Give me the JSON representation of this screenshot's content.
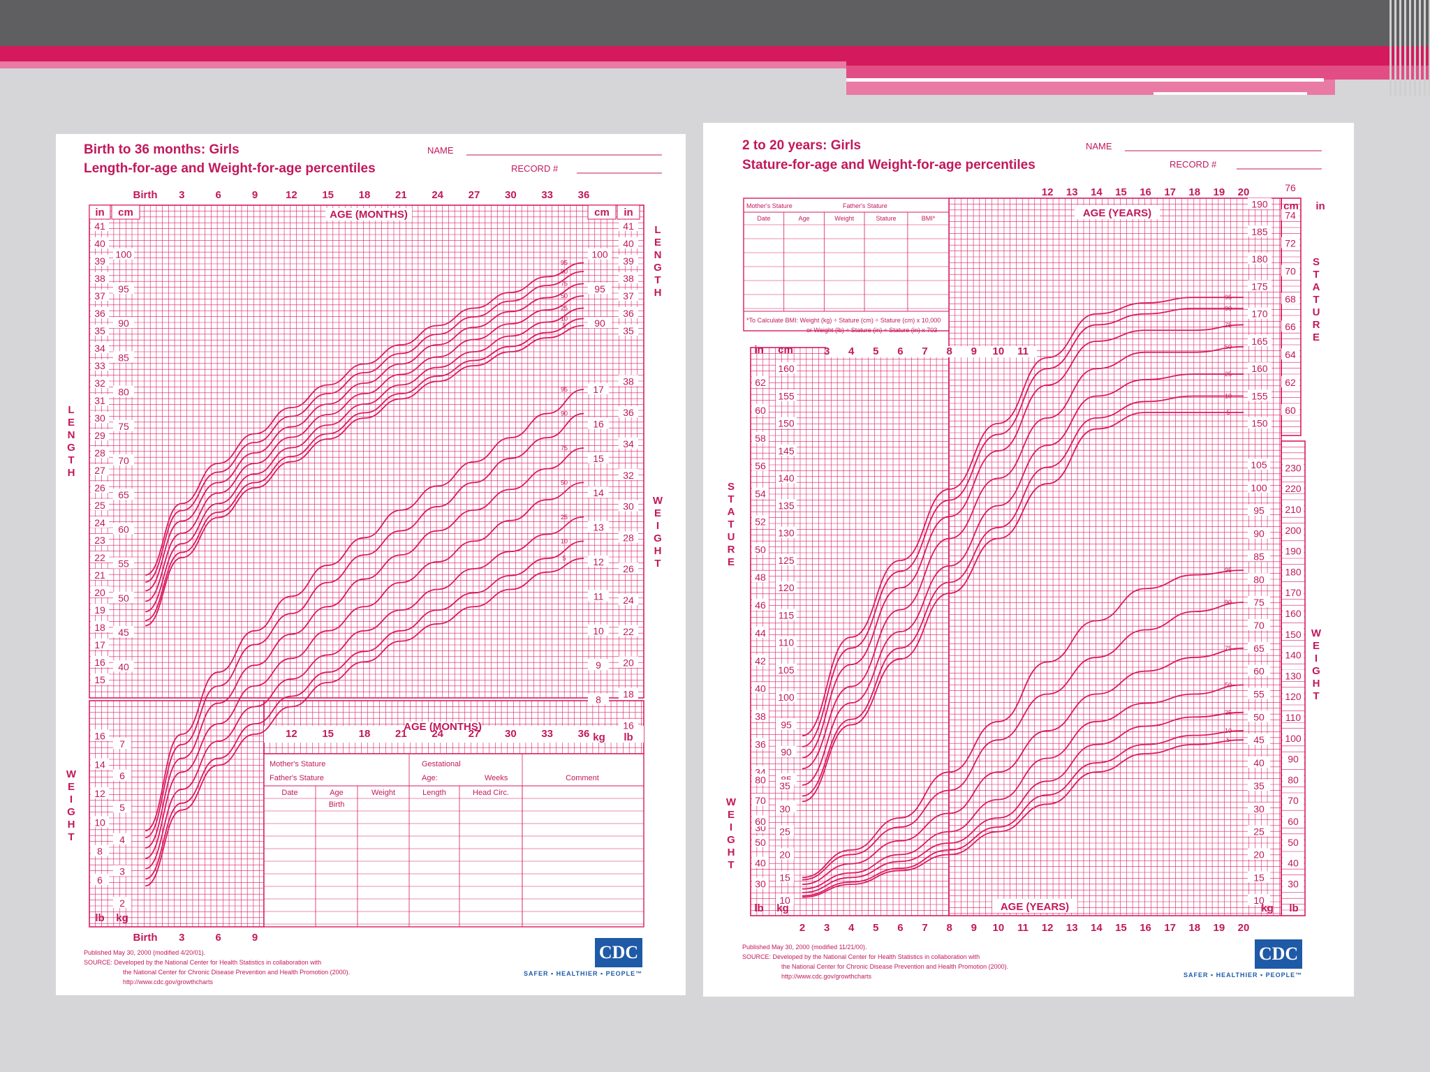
{
  "slide": {
    "accent": "#d41a5c",
    "grid_color": "#d81b60"
  },
  "left_chart": {
    "title": "Birth to 36 months: Girls",
    "subtitle": "Length-for-age and Weight-for-age percentiles",
    "name_label": "NAME",
    "record_label": "RECORD #",
    "age_axis_label": "AGE (MONTHS)",
    "top_ticks": [
      "Birth",
      "3",
      "6",
      "9",
      "12",
      "15",
      "18",
      "21",
      "24",
      "27",
      "30",
      "33",
      "36"
    ],
    "bottom_ticks": [
      "Birth",
      "3",
      "6",
      "9"
    ],
    "inner_ticks": [
      "12",
      "15",
      "18",
      "21",
      "24",
      "27",
      "30",
      "33",
      "36"
    ],
    "length_label": "LENGTH",
    "weight_label": "WEIGHT",
    "unit_in": "in",
    "unit_cm": "cm",
    "unit_kg": "kg",
    "unit_lb": "lb",
    "length_in_ticks": [
      "41",
      "40",
      "39",
      "38",
      "37",
      "36",
      "35",
      "34",
      "33",
      "32",
      "31",
      "30",
      "29",
      "28",
      "27",
      "26",
      "25",
      "24",
      "23",
      "22",
      "21",
      "20",
      "19",
      "18",
      "17",
      "16",
      "15"
    ],
    "length_cm_ticks": [
      "100",
      "95",
      "90",
      "85",
      "80",
      "75",
      "70",
      "65",
      "60",
      "55",
      "50",
      "45",
      "40"
    ],
    "right_length_cm_ticks": [
      "100",
      "95",
      "90"
    ],
    "right_length_in_ticks": [
      "41",
      "40",
      "39",
      "38",
      "37",
      "36",
      "35"
    ],
    "right_weight_kg_ticks": [
      "17",
      "16",
      "15",
      "14",
      "13",
      "12",
      "11",
      "10",
      "9",
      "8"
    ],
    "right_weight_lb_ticks": [
      "38",
      "36",
      "34",
      "32",
      "30",
      "28",
      "26",
      "24",
      "22",
      "20",
      "18",
      "16"
    ],
    "left_weight_lb_ticks": [
      "16",
      "14",
      "12",
      "10",
      "8",
      "6"
    ],
    "left_weight_kg_ticks": [
      "7",
      "6",
      "5",
      "4",
      "3",
      "2"
    ],
    "percentiles": [
      "95",
      "90",
      "75",
      "50",
      "25",
      "10",
      "5"
    ],
    "form": {
      "mothers_stature": "Mother's Stature",
      "fathers_stature": "Father's Stature",
      "gestational": "Gestational",
      "age": "Age:",
      "weeks": "Weeks",
      "comment": "Comment",
      "cols": [
        "Date",
        "Age",
        "Weight",
        "Length",
        "Head Circ."
      ],
      "birth": "Birth"
    },
    "footer": [
      "Published May 30, 2000 (modified 4/20/01).",
      "SOURCE: Developed by the National Center for Health Statistics in collaboration with",
      "the National Center for Chronic Disease Prevention and Health Promotion (2000).",
      "http://www.cdc.gov/growthcharts"
    ],
    "logo": "CDC",
    "tagline": "SAFER • HEALTHIER • PEOPLE™"
  },
  "right_chart": {
    "title": "2 to 20 years: Girls",
    "subtitle": "Stature-for-age and Weight-for-age percentiles",
    "name_label": "NAME",
    "record_label": "RECORD #",
    "age_axis_label": "AGE (YEARS)",
    "top_ticks": [
      "12",
      "13",
      "14",
      "15",
      "16",
      "17",
      "18",
      "19",
      "20"
    ],
    "bottom_ticks": [
      "2",
      "3",
      "4",
      "5",
      "6",
      "7",
      "8",
      "9",
      "10",
      "11",
      "12",
      "13",
      "14",
      "15",
      "16",
      "17",
      "18",
      "19",
      "20"
    ],
    "inner_ticks": [
      "3",
      "4",
      "5",
      "6",
      "7",
      "8",
      "9",
      "10",
      "11"
    ],
    "stature_label": "STATURE",
    "weight_label": "WEIGHT",
    "unit_in": "in",
    "unit_cm": "cm",
    "unit_kg": "kg",
    "unit_lb": "lb",
    "table": {
      "mothers_stature": "Mother's Stature",
      "fathers_stature": "Father's Stature",
      "cols": [
        "Date",
        "Age",
        "Weight",
        "Stature",
        "BMI*"
      ],
      "bmi_note1": "*To Calculate BMI: Weight (kg) ÷ Stature (cm) ÷ Stature (cm) x 10,000",
      "bmi_note2": "or Weight (lb) ÷ Stature (in) ÷ Stature (in) x 703"
    },
    "left_in_ticks": [
      "62",
      "60",
      "58",
      "56",
      "54",
      "52",
      "50",
      "48",
      "46",
      "44",
      "42",
      "40",
      "38",
      "36",
      "34",
      "32",
      "30"
    ],
    "left_cm_ticks": [
      "160",
      "155",
      "150",
      "145",
      "140",
      "135",
      "130",
      "125",
      "120",
      "115",
      "110",
      "105",
      "100",
      "95",
      "90",
      "85",
      "80"
    ],
    "right_cm_top": [
      "190",
      "185",
      "180",
      "175",
      "170",
      "165",
      "160",
      "155",
      "150"
    ],
    "right_in_top": [
      "76",
      "74",
      "72",
      "70",
      "68",
      "66",
      "64",
      "62",
      "60"
    ],
    "right_kg_ticks": [
      "105",
      "100",
      "95",
      "90",
      "85",
      "80",
      "75",
      "70",
      "65",
      "60",
      "55",
      "50",
      "45",
      "40",
      "35",
      "30",
      "25",
      "20",
      "15",
      "10"
    ],
    "right_lb_ticks": [
      "230",
      "220",
      "210",
      "200",
      "190",
      "180",
      "170",
      "160",
      "150",
      "140",
      "130",
      "120",
      "110",
      "100",
      "90",
      "80",
      "70",
      "60",
      "50",
      "40",
      "30"
    ],
    "left_weight_lb_ticks": [
      "80",
      "70",
      "60",
      "50",
      "40",
      "30"
    ],
    "left_weight_kg_ticks": [
      "35",
      "30",
      "25",
      "20",
      "15",
      "10"
    ],
    "percentiles": [
      "95",
      "90",
      "75",
      "50",
      "25",
      "10",
      "5"
    ],
    "footer": [
      "Published May 30, 2000 (modified 11/21/00).",
      "SOURCE: Developed by the National Center for Health Statistics in collaboration with",
      "the National Center for Chronic Disease Prevention and Health Promotion (2000).",
      "http://www.cdc.gov/growthcharts"
    ],
    "logo": "CDC",
    "tagline": "SAFER • HEALTHIER • PEOPLE™"
  },
  "chart_data": [
    {
      "type": "line",
      "title": "Birth to 36 months: Girls — Length-for-age",
      "xlabel": "AGE (MONTHS)",
      "ylabel": "LENGTH",
      "x": [
        0,
        3,
        6,
        9,
        12,
        15,
        18,
        21,
        24,
        27,
        30,
        33,
        36
      ],
      "xlim": [
        0,
        36
      ],
      "ylim": [
        15,
        41.5
      ],
      "series": [
        {
          "name": "95",
          "values": [
            21.0,
            25.1,
            27.4,
            29.1,
            30.6,
            31.9,
            33.1,
            34.2,
            35.3,
            36.3,
            37.2,
            38.1,
            38.9
          ]
        },
        {
          "name": "90",
          "values": [
            20.6,
            24.7,
            26.9,
            28.6,
            30.1,
            31.4,
            32.6,
            33.7,
            34.8,
            35.8,
            36.7,
            37.6,
            38.4
          ]
        },
        {
          "name": "75",
          "values": [
            20.1,
            24.1,
            26.3,
            28.0,
            29.5,
            30.8,
            32.0,
            33.1,
            34.2,
            35.2,
            36.1,
            36.9,
            37.7
          ]
        },
        {
          "name": "50",
          "values": [
            19.5,
            23.4,
            25.7,
            27.4,
            28.9,
            30.2,
            31.4,
            32.5,
            33.5,
            34.5,
            35.4,
            36.2,
            37.0
          ]
        },
        {
          "name": "25",
          "values": [
            18.9,
            22.8,
            25.1,
            26.8,
            28.3,
            29.6,
            30.8,
            31.9,
            32.9,
            33.8,
            34.7,
            35.5,
            36.3
          ]
        },
        {
          "name": "10",
          "values": [
            18.4,
            22.3,
            24.6,
            26.3,
            27.8,
            29.1,
            30.3,
            31.4,
            32.4,
            33.3,
            34.1,
            34.9,
            35.7
          ]
        },
        {
          "name": "5",
          "values": [
            18.1,
            22.0,
            24.3,
            26.0,
            27.5,
            28.8,
            30.0,
            31.1,
            32.1,
            33.0,
            33.8,
            34.6,
            35.3
          ]
        }
      ]
    },
    {
      "type": "line",
      "title": "Birth to 36 months: Girls — Weight-for-age",
      "xlabel": "AGE (MONTHS)",
      "ylabel": "WEIGHT (kg)",
      "x": [
        0,
        3,
        6,
        9,
        12,
        15,
        18,
        21,
        24,
        27,
        30,
        33,
        36
      ],
      "xlim": [
        0,
        36
      ],
      "ylim": [
        1.5,
        17.5
      ],
      "series": [
        {
          "name": "95",
          "values": [
            4.2,
            7.0,
            8.8,
            10.0,
            11.0,
            11.9,
            12.7,
            13.5,
            14.2,
            14.9,
            15.6,
            16.3,
            17.0
          ]
        },
        {
          "name": "90",
          "values": [
            4.0,
            6.7,
            8.4,
            9.6,
            10.5,
            11.4,
            12.2,
            12.9,
            13.6,
            14.3,
            15.0,
            15.6,
            16.3
          ]
        },
        {
          "name": "75",
          "values": [
            3.7,
            6.3,
            7.9,
            9.0,
            9.9,
            10.7,
            11.5,
            12.2,
            12.9,
            13.5,
            14.1,
            14.7,
            15.3
          ]
        },
        {
          "name": "50",
          "values": [
            3.4,
            5.9,
            7.3,
            8.4,
            9.2,
            10.0,
            10.7,
            11.4,
            12.0,
            12.6,
            13.2,
            13.8,
            14.3
          ]
        },
        {
          "name": "25",
          "values": [
            3.1,
            5.4,
            6.8,
            7.8,
            8.6,
            9.3,
            10.0,
            10.6,
            11.2,
            11.8,
            12.3,
            12.8,
            13.3
          ]
        },
        {
          "name": "10",
          "values": [
            2.8,
            5.0,
            6.3,
            7.3,
            8.1,
            8.8,
            9.4,
            10.0,
            10.6,
            11.1,
            11.6,
            12.1,
            12.6
          ]
        },
        {
          "name": "5",
          "values": [
            2.6,
            4.8,
            6.1,
            7.0,
            7.8,
            8.5,
            9.1,
            9.7,
            10.2,
            10.7,
            11.2,
            11.7,
            12.1
          ]
        }
      ]
    },
    {
      "type": "line",
      "title": "2 to 20 years: Girls — Stature-for-age",
      "xlabel": "AGE (YEARS)",
      "ylabel": "STATURE (cm)",
      "x": [
        2,
        4,
        6,
        8,
        10,
        12,
        14,
        16,
        18,
        20
      ],
      "xlim": [
        2,
        20
      ],
      "ylim": [
        76,
        200
      ],
      "series": [
        {
          "name": "95",
          "values": [
            93,
            111,
            125,
            138,
            150,
            162,
            170,
            172,
            173,
            173
          ]
        },
        {
          "name": "90",
          "values": [
            91,
            109,
            123,
            136,
            148,
            160,
            168,
            170,
            171,
            171
          ]
        },
        {
          "name": "75",
          "values": [
            89,
            106,
            120,
            133,
            145,
            157,
            165,
            167,
            167,
            168
          ]
        },
        {
          "name": "50",
          "values": [
            87,
            102,
            116,
            129,
            140,
            151,
            160,
            163,
            163,
            164
          ]
        },
        {
          "name": "25",
          "values": [
            84,
            99,
            112,
            124,
            135,
            146,
            155,
            158,
            159,
            159
          ]
        },
        {
          "name": "10",
          "values": [
            82,
            96,
            109,
            121,
            131,
            142,
            151,
            154,
            155,
            155
          ]
        },
        {
          "name": "5",
          "values": [
            81,
            95,
            107,
            119,
            129,
            139,
            149,
            152,
            152,
            152
          ]
        }
      ]
    },
    {
      "type": "line",
      "title": "2 to 20 years: Girls — Weight-for-age",
      "xlabel": "AGE (YEARS)",
      "ylabel": "WEIGHT (kg)",
      "x": [
        2,
        4,
        6,
        8,
        10,
        12,
        14,
        16,
        18,
        20
      ],
      "xlim": [
        2,
        20
      ],
      "ylim": [
        8,
        107
      ],
      "series": [
        {
          "name": "95",
          "values": [
            15,
            21,
            28,
            38,
            49,
            62,
            71,
            78,
            81,
            82
          ]
        },
        {
          "name": "90",
          "values": [
            14.5,
            20,
            26,
            34,
            45,
            55,
            63,
            69,
            73,
            75
          ]
        },
        {
          "name": "75",
          "values": [
            13.5,
            18,
            23,
            29,
            38,
            47,
            55,
            60,
            63,
            65
          ]
        },
        {
          "name": "50",
          "values": [
            12.5,
            16,
            20,
            25,
            32,
            41,
            49,
            53,
            55,
            57
          ]
        },
        {
          "name": "25",
          "values": [
            11.7,
            15,
            18.5,
            22.5,
            28,
            36,
            44,
            48,
            50,
            51
          ]
        },
        {
          "name": "10",
          "values": [
            11,
            14,
            17,
            21,
            26,
            33,
            40,
            44,
            46,
            47
          ]
        },
        {
          "name": "5",
          "values": [
            10.7,
            13.5,
            16.5,
            20,
            25,
            31,
            38,
            42,
            44,
            45
          ]
        }
      ]
    }
  ]
}
